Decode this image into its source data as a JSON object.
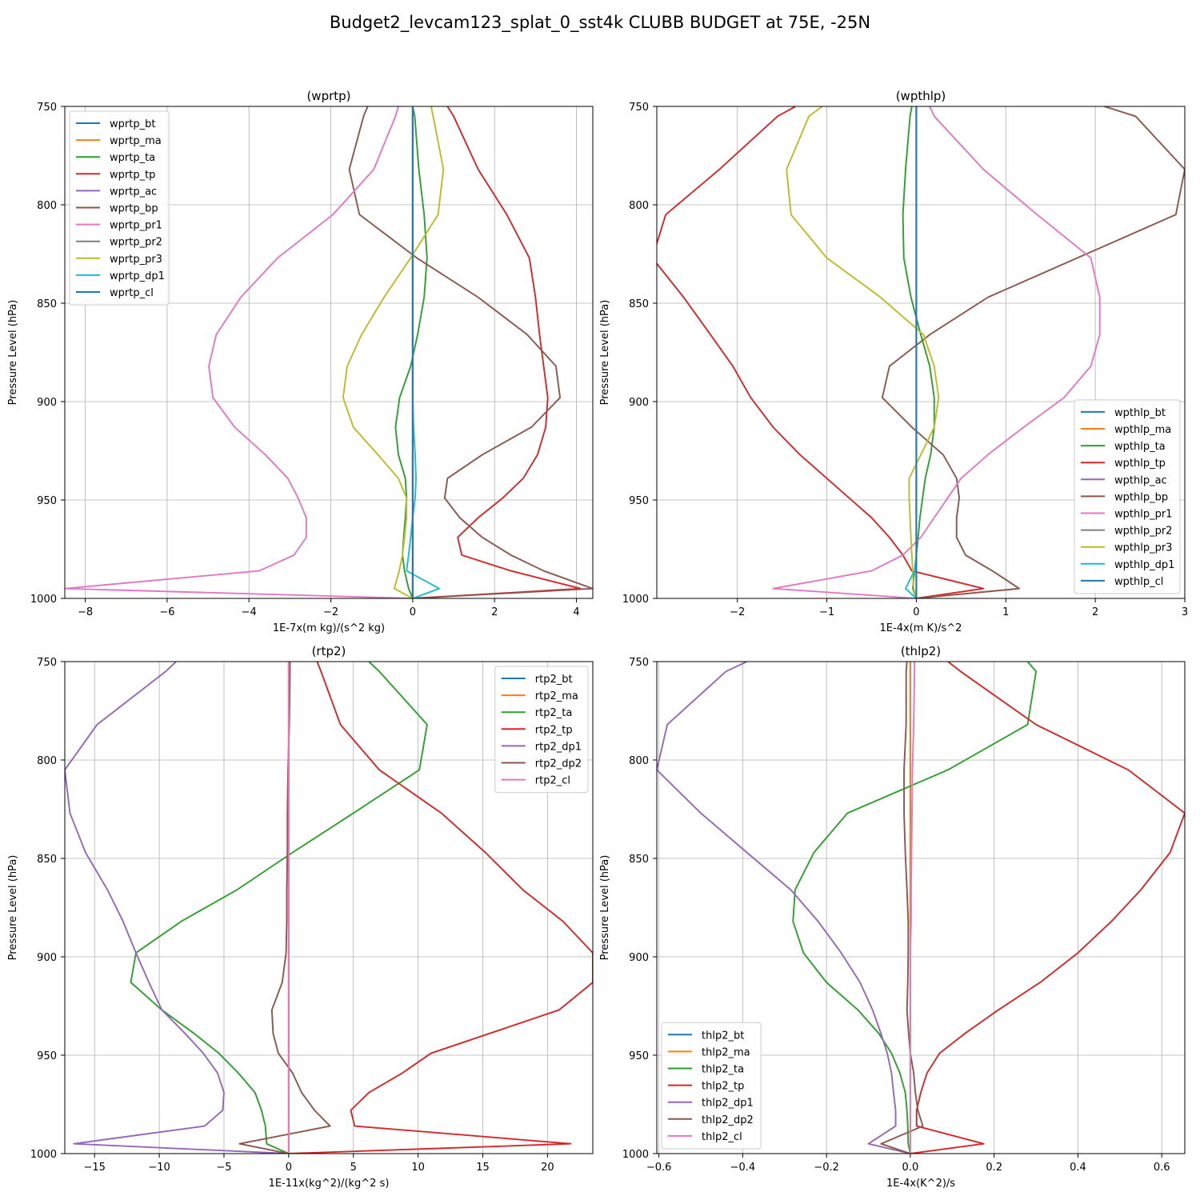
{
  "figure": {
    "title": "Budget2_levcam123_splat_0_sst4k CLUBB BUDGET at 75E, -25N"
  },
  "chart_data": [
    {
      "type": "line",
      "title": "(wprtp)",
      "xlabel": "1E-7x(m kg)/(s^2 kg)",
      "ylabel": "Pressure Level (hPa)",
      "xlim": [
        -8.5,
        4.4
      ],
      "ylim": [
        1000,
        750
      ],
      "xticks": [
        -8,
        -6,
        -4,
        -2,
        0,
        2,
        4
      ],
      "xtick_labels": [
        "−8",
        "−6",
        "−4",
        "−2",
        "0",
        "2",
        "4"
      ],
      "yticks": [
        750,
        800,
        850,
        900,
        950,
        1000
      ],
      "ytick_labels": [
        "750",
        "800",
        "850",
        "900",
        "950",
        "1000"
      ],
      "grid": true,
      "legend_position": "upper-left",
      "levels": [
        750,
        755,
        782,
        805,
        827,
        847,
        866,
        882,
        898,
        913,
        927,
        939,
        949,
        959,
        969,
        978,
        986,
        995,
        1000
      ],
      "series": [
        {
          "name": "wprtp_bt",
          "color": "#1f77b4",
          "values": [
            0,
            0,
            0,
            0,
            0,
            0,
            0,
            0,
            0,
            0,
            0,
            0,
            0,
            0,
            0,
            0,
            0,
            0,
            0
          ]
        },
        {
          "name": "wprtp_ma",
          "color": "#ff7f0e",
          "values": [
            0,
            0,
            0,
            0,
            0,
            0,
            0,
            0,
            0,
            0,
            0,
            0,
            0,
            0,
            0,
            0,
            0,
            0,
            0
          ]
        },
        {
          "name": "wprtp_ta",
          "color": "#2ca02c",
          "values": [
            0.0,
            0.05,
            0.15,
            0.28,
            0.35,
            0.28,
            0.12,
            -0.05,
            -0.32,
            -0.42,
            -0.35,
            -0.18,
            -0.15,
            -0.18,
            -0.22,
            -0.25,
            -0.2,
            -0.1,
            0.0
          ]
        },
        {
          "name": "wprtp_tp",
          "color": "#d62728",
          "values": [
            0.85,
            1.0,
            1.6,
            2.3,
            2.85,
            3.0,
            3.1,
            3.2,
            3.3,
            3.25,
            3.05,
            2.7,
            2.2,
            1.6,
            1.1,
            1.2,
            2.4,
            4.1,
            0.0
          ]
        },
        {
          "name": "wprtp_ac",
          "color": "#9467bd",
          "values": [
            0,
            0,
            0,
            0,
            0,
            0,
            0,
            0,
            0,
            0,
            0,
            0,
            0,
            0,
            0,
            0,
            0,
            0,
            0
          ]
        },
        {
          "name": "wprtp_bp",
          "color": "#8c564b",
          "values": [
            -1.1,
            -1.2,
            -1.55,
            -1.3,
            0.1,
            1.6,
            2.8,
            3.5,
            3.6,
            2.9,
            1.7,
            0.85,
            0.78,
            1.15,
            1.7,
            2.4,
            3.2,
            4.4,
            0.0
          ]
        },
        {
          "name": "wprtp_pr1",
          "color": "#e377c2",
          "values": [
            -0.35,
            -0.42,
            -0.95,
            -1.95,
            -3.3,
            -4.2,
            -4.8,
            -4.98,
            -4.88,
            -4.35,
            -3.6,
            -3.05,
            -2.8,
            -2.6,
            -2.6,
            -2.9,
            -3.75,
            -8.5,
            0.0
          ]
        },
        {
          "name": "wprtp_pr2",
          "color": "#7f7f7f",
          "values": [
            0,
            0,
            0,
            0,
            0,
            0,
            0,
            0,
            0,
            0,
            0,
            0,
            0,
            0,
            0,
            0,
            0,
            0,
            0
          ]
        },
        {
          "name": "wprtp_pr3",
          "color": "#bcbd22",
          "values": [
            0.45,
            0.5,
            0.75,
            0.62,
            -0.05,
            -0.7,
            -1.25,
            -1.6,
            -1.7,
            -1.45,
            -0.85,
            -0.35,
            -0.15,
            -0.15,
            -0.2,
            -0.25,
            -0.33,
            -0.45,
            0.0
          ]
        },
        {
          "name": "wprtp_dp1",
          "color": "#17becf",
          "values": [
            0,
            0,
            0,
            0,
            0,
            0,
            0,
            0,
            0,
            0.02,
            0.06,
            0.08,
            0.06,
            0.0,
            -0.05,
            -0.1,
            -0.15,
            0.65,
            0.0
          ]
        },
        {
          "name": "wprtp_cl",
          "color": "#1f77b4",
          "values": [
            0,
            0,
            0,
            0,
            0,
            0,
            0,
            0,
            0,
            0,
            0,
            0,
            0,
            0,
            0,
            0,
            0,
            0,
            0
          ]
        }
      ]
    },
    {
      "type": "line",
      "title": "(wpthlp)",
      "xlabel": "1E-4x(m K)/s^2",
      "ylabel": "Pressure Level (hPa)",
      "xlim": [
        -2.9,
        3.0
      ],
      "ylim": [
        1000,
        750
      ],
      "xticks": [
        -2,
        -1,
        0,
        1,
        2,
        3
      ],
      "xtick_labels": [
        "−2",
        "−1",
        "0",
        "1",
        "2",
        "3"
      ],
      "yticks": [
        750,
        800,
        850,
        900,
        950,
        1000
      ],
      "ytick_labels": [
        "750",
        "800",
        "850",
        "900",
        "950",
        "1000"
      ],
      "grid": true,
      "legend_position": "lower-right",
      "levels": [
        750,
        755,
        782,
        805,
        827,
        847,
        866,
        882,
        898,
        913,
        927,
        939,
        949,
        959,
        969,
        978,
        986,
        995,
        1000
      ],
      "series": [
        {
          "name": "wpthlp_bt",
          "color": "#1f77b4",
          "values": [
            0,
            0,
            0,
            0,
            0,
            0,
            0,
            0,
            0,
            0,
            0,
            0,
            0,
            0,
            0,
            0,
            0,
            0,
            0
          ]
        },
        {
          "name": "wpthlp_ma",
          "color": "#ff7f0e",
          "values": [
            0,
            0,
            0,
            0,
            0,
            0,
            0,
            0,
            0,
            0,
            0,
            0,
            0,
            0,
            0,
            0,
            0,
            0,
            0
          ]
        },
        {
          "name": "wpthlp_ta",
          "color": "#2ca02c",
          "values": [
            -0.05,
            -0.07,
            -0.12,
            -0.15,
            -0.14,
            -0.06,
            0.05,
            0.15,
            0.2,
            0.2,
            0.16,
            0.1,
            0.07,
            0.04,
            0.02,
            0.0,
            -0.02,
            -0.04,
            0.0
          ]
        },
        {
          "name": "wpthlp_tp",
          "color": "#d62728",
          "values": [
            -1.35,
            -1.55,
            -2.2,
            -2.8,
            -2.95,
            -2.6,
            -2.3,
            -2.05,
            -1.85,
            -1.6,
            -1.3,
            -1.0,
            -0.75,
            -0.5,
            -0.3,
            -0.15,
            -0.05,
            0.75,
            0.0
          ]
        },
        {
          "name": "wpthlp_ac",
          "color": "#9467bd",
          "values": [
            0,
            0,
            0,
            0,
            0,
            0,
            0,
            0,
            0,
            0,
            0,
            0,
            0,
            0,
            0,
            0,
            0,
            0,
            0
          ]
        },
        {
          "name": "wpthlp_bp",
          "color": "#8c564b",
          "values": [
            2.1,
            2.45,
            3.0,
            2.9,
            1.8,
            0.8,
            0.15,
            -0.3,
            -0.38,
            -0.05,
            0.3,
            0.45,
            0.48,
            0.45,
            0.45,
            0.55,
            0.85,
            1.15,
            0.0
          ]
        },
        {
          "name": "wpthlp_pr1",
          "color": "#e377c2",
          "values": [
            0.15,
            0.2,
            0.75,
            1.35,
            1.95,
            2.05,
            2.05,
            1.95,
            1.65,
            1.2,
            0.8,
            0.5,
            0.35,
            0.2,
            0.05,
            -0.15,
            -0.5,
            -1.6,
            0.0
          ]
        },
        {
          "name": "wpthlp_pr2",
          "color": "#7f7f7f",
          "values": [
            0,
            0,
            0,
            0,
            0,
            0,
            0,
            0,
            0,
            0,
            0,
            0,
            0,
            0,
            0,
            0,
            0,
            0,
            0
          ]
        },
        {
          "name": "wpthlp_pr3",
          "color": "#bcbd22",
          "values": [
            -1.05,
            -1.2,
            -1.45,
            -1.4,
            -1.0,
            -0.4,
            0.08,
            0.2,
            0.25,
            0.2,
            0.05,
            -0.08,
            -0.08,
            -0.07,
            -0.06,
            -0.05,
            -0.04,
            -0.03,
            0.0
          ]
        },
        {
          "name": "wpthlp_dp1",
          "color": "#17becf",
          "values": [
            0,
            0,
            0,
            0,
            0,
            0,
            0,
            0,
            0,
            0,
            0,
            0,
            0,
            0,
            0,
            0,
            -0.02,
            -0.12,
            0.0
          ]
        },
        {
          "name": "wpthlp_cl",
          "color": "#1f77b4",
          "values": [
            0,
            0,
            0,
            0,
            0,
            0,
            0,
            0,
            0,
            0,
            0,
            0,
            0,
            0,
            0,
            0,
            0,
            0,
            0
          ]
        }
      ]
    },
    {
      "type": "line",
      "title": "(rtp2)",
      "xlabel": "1E-11x(kg^2)/(kg^2 s)",
      "ylabel": "Pressure Level (hPa)",
      "xlim": [
        -17.3,
        23.5
      ],
      "ylim": [
        1000,
        750
      ],
      "xticks": [
        -15,
        -10,
        -5,
        0,
        5,
        10,
        15,
        20
      ],
      "xtick_labels": [
        "−15",
        "−10",
        "−5",
        "0",
        "5",
        "10",
        "15",
        "20"
      ],
      "yticks": [
        750,
        800,
        850,
        900,
        950,
        1000
      ],
      "ytick_labels": [
        "750",
        "800",
        "850",
        "900",
        "950",
        "1000"
      ],
      "grid": true,
      "legend_position": "upper-right",
      "levels": [
        750,
        755,
        782,
        805,
        827,
        847,
        866,
        882,
        898,
        913,
        927,
        939,
        949,
        959,
        969,
        978,
        986,
        995,
        1000
      ],
      "series": [
        {
          "name": "rtp2_bt",
          "color": "#1f77b4",
          "values": [
            0,
            0,
            0,
            0,
            0,
            0,
            0,
            0,
            0,
            0,
            0,
            0,
            0,
            0,
            0,
            0,
            0,
            0,
            0
          ]
        },
        {
          "name": "rtp2_ma",
          "color": "#ff7f0e",
          "values": [
            0,
            0,
            0,
            0,
            0,
            0,
            0,
            0,
            0,
            0,
            0,
            0,
            0,
            0,
            0,
            0,
            0,
            0,
            0
          ]
        },
        {
          "name": "rtp2_ta",
          "color": "#2ca02c",
          "values": [
            6.2,
            7.0,
            10.7,
            10.1,
            5.0,
            0.3,
            -4.0,
            -8.3,
            -11.8,
            -12.2,
            -9.8,
            -7.3,
            -5.4,
            -3.9,
            -2.6,
            -2.1,
            -1.8,
            -1.7,
            0.0
          ]
        },
        {
          "name": "rtp2_tp",
          "color": "#d62728",
          "values": [
            2.2,
            2.5,
            4.0,
            7.0,
            11.8,
            15.2,
            18.1,
            21.2,
            23.5,
            23.5,
            20.9,
            15.5,
            11.0,
            8.8,
            6.2,
            4.8,
            5.1,
            21.8,
            0.0
          ]
        },
        {
          "name": "rtp2_dp1",
          "color": "#9467bd",
          "values": [
            -8.7,
            -9.5,
            -14.8,
            -17.3,
            -16.9,
            -15.7,
            -14.0,
            -12.8,
            -11.8,
            -10.8,
            -9.8,
            -8.0,
            -6.6,
            -5.5,
            -5.0,
            -5.1,
            -6.5,
            -16.6,
            0.0
          ]
        },
        {
          "name": "rtp2_dp2",
          "color": "#8c564b",
          "values": [
            0.1,
            0.1,
            0.05,
            -0.05,
            -0.1,
            -0.1,
            -0.15,
            -0.15,
            -0.2,
            -0.5,
            -1.3,
            -1.2,
            -0.8,
            0.3,
            1.0,
            2.0,
            3.2,
            -3.8,
            0.0
          ]
        },
        {
          "name": "rtp2_cl",
          "color": "#e377c2",
          "values": [
            0,
            0,
            0,
            0,
            0,
            0,
            0,
            0,
            0,
            0,
            0,
            0,
            0,
            0,
            0,
            0,
            0,
            0,
            0
          ]
        }
      ]
    },
    {
      "type": "line",
      "title": "(thlp2)",
      "xlabel": "1E-4x(K^2)/s",
      "ylabel": "Pressure Level (hPa)",
      "xlim": [
        -0.605,
        0.655
      ],
      "ylim": [
        1000,
        750
      ],
      "xticks": [
        -0.6,
        -0.4,
        -0.2,
        0.0,
        0.2,
        0.4,
        0.6
      ],
      "xtick_labels": [
        "−0.6",
        "−0.4",
        "−0.2",
        "0.0",
        "0.2",
        "0.4",
        "0.6"
      ],
      "yticks": [
        750,
        800,
        850,
        900,
        950,
        1000
      ],
      "ytick_labels": [
        "750",
        "800",
        "850",
        "900",
        "950",
        "1000"
      ],
      "grid": true,
      "legend_position": "lower-left",
      "levels": [
        750,
        755,
        782,
        805,
        827,
        847,
        866,
        882,
        898,
        913,
        927,
        939,
        949,
        959,
        969,
        978,
        986,
        995,
        1000
      ],
      "series": [
        {
          "name": "thlp2_bt",
          "color": "#1f77b4",
          "values": [
            0,
            0,
            0,
            0,
            0,
            0,
            0,
            0,
            0,
            0,
            0,
            0,
            0,
            0,
            0,
            0,
            0,
            0,
            0
          ]
        },
        {
          "name": "thlp2_ma",
          "color": "#ff7f0e",
          "values": [
            0,
            0,
            0,
            0,
            0,
            0,
            0,
            0,
            0,
            0,
            0,
            0,
            0,
            0,
            0,
            0,
            0,
            0,
            0
          ]
        },
        {
          "name": "thlp2_ta",
          "color": "#2ca02c",
          "values": [
            0.28,
            0.3,
            0.28,
            0.09,
            -0.15,
            -0.23,
            -0.275,
            -0.28,
            -0.255,
            -0.2,
            -0.125,
            -0.075,
            -0.045,
            -0.025,
            -0.012,
            -0.008,
            -0.006,
            -0.005,
            0.0
          ]
        },
        {
          "name": "thlp2_tp",
          "color": "#d62728",
          "values": [
            0.09,
            0.12,
            0.3,
            0.52,
            0.655,
            0.62,
            0.55,
            0.48,
            0.4,
            0.31,
            0.21,
            0.13,
            0.07,
            0.04,
            0.025,
            0.015,
            0.015,
            0.175,
            0.0
          ]
        },
        {
          "name": "thlp2_dp1",
          "color": "#9467bd",
          "values": [
            -0.39,
            -0.44,
            -0.58,
            -0.605,
            -0.5,
            -0.39,
            -0.285,
            -0.22,
            -0.165,
            -0.12,
            -0.09,
            -0.07,
            -0.055,
            -0.045,
            -0.04,
            -0.035,
            -0.035,
            -0.1,
            0.0
          ]
        },
        {
          "name": "thlp2_dp2",
          "color": "#8c564b",
          "values": [
            -0.008,
            -0.01,
            -0.01,
            -0.015,
            -0.015,
            -0.012,
            -0.008,
            -0.005,
            -0.005,
            -0.006,
            -0.008,
            -0.004,
            0.0,
            0.008,
            0.012,
            0.018,
            0.03,
            -0.07,
            0.0
          ]
        },
        {
          "name": "thlp2_cl",
          "color": "#e377c2",
          "values": [
            0.01,
            0.01,
            0.008,
            0.005,
            0.004,
            0.003,
            0.002,
            0.002,
            0.0,
            0,
            0,
            0,
            0,
            0,
            0,
            0,
            0,
            0,
            0
          ]
        }
      ]
    }
  ]
}
